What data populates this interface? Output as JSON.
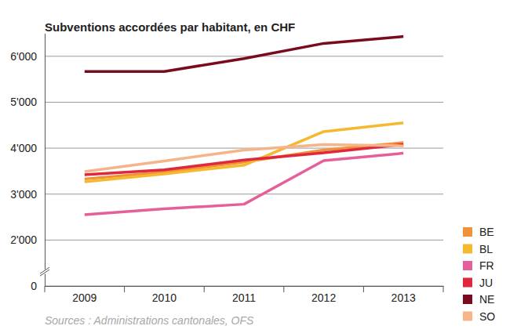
{
  "chart_data": {
    "type": "line",
    "title": "Subventions accordées par habitant, en CHF",
    "source": "Sources : Administrations cantonales, OFS",
    "categories": [
      "2009",
      "2010",
      "2011",
      "2012",
      "2013"
    ],
    "series": [
      {
        "name": "BE",
        "color": "#f0923a",
        "values": [
          3330,
          3480,
          3700,
          3960,
          4120
        ]
      },
      {
        "name": "BL",
        "color": "#f5b82e",
        "values": [
          3270,
          3440,
          3630,
          4360,
          4550
        ]
      },
      {
        "name": "FR",
        "color": "#e5609a",
        "values": [
          2550,
          2680,
          2780,
          3730,
          3890
        ]
      },
      {
        "name": "JU",
        "color": "#e0283c",
        "values": [
          3420,
          3530,
          3740,
          3900,
          4080
        ]
      },
      {
        "name": "NE",
        "color": "#7a0a1e",
        "values": [
          5670,
          5670,
          5950,
          6280,
          6430
        ]
      },
      {
        "name": "SO",
        "color": "#f5b48a",
        "values": [
          3490,
          3720,
          3960,
          4080,
          4050
        ]
      }
    ],
    "ylim": [
      0,
      6500
    ],
    "yticks": [
      0,
      {
        "value": 2000,
        "label": "2'000"
      },
      {
        "value": 3000,
        "label": "3'000"
      },
      {
        "value": 4000,
        "label": "4'000"
      },
      {
        "value": 5000,
        "label": "5'000"
      },
      {
        "value": 6000,
        "label": "6'000"
      }
    ],
    "grid": true,
    "legend": "right"
  }
}
